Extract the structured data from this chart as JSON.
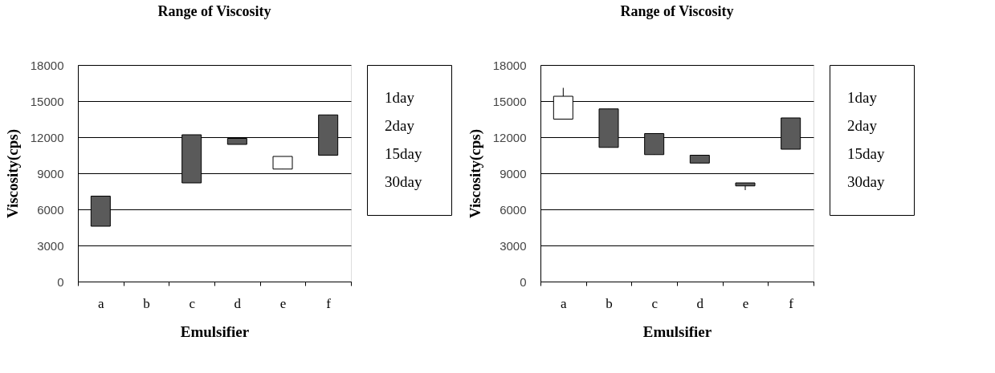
{
  "chart_data": [
    {
      "type": "candlestick",
      "title": "Range of Viscosity",
      "xlabel": "Emulsifier",
      "ylabel": "Viscosity(cps)",
      "categories": [
        "a",
        "b",
        "c",
        "d",
        "e",
        "f"
      ],
      "ohlc": [
        [
          7100,
          7100,
          4600,
          4600
        ],
        null,
        [
          12200,
          12200,
          8200,
          8200
        ],
        [
          11900,
          11900,
          11400,
          11400
        ],
        [
          9350,
          10400,
          9350,
          10400
        ],
        [
          13850,
          13850,
          10500,
          10500
        ]
      ],
      "ylim": [
        0,
        18000
      ],
      "yticks": [
        0,
        3000,
        6000,
        9000,
        12000,
        15000,
        18000
      ],
      "grid": "y",
      "annotations": [
        "1day",
        "2day",
        "15day",
        "30day"
      ]
    },
    {
      "type": "candlestick",
      "title": "Range of Viscosity",
      "xlabel": "Emulsifier",
      "ylabel": "Viscosity(cps)",
      "categories": [
        "a",
        "b",
        "c",
        "d",
        "e",
        "f"
      ],
      "ohlc": [
        [
          13500,
          16100,
          13500,
          15400
        ],
        [
          14350,
          14350,
          11150,
          11150
        ],
        [
          12300,
          12300,
          10550,
          10550
        ],
        [
          10500,
          10500,
          9850,
          9850
        ],
        [
          8200,
          8200,
          7600,
          7950
        ],
        [
          13600,
          13600,
          11000,
          11000
        ]
      ],
      "ylim": [
        0,
        18000
      ],
      "yticks": [
        0,
        3000,
        6000,
        9000,
        12000,
        15000,
        18000
      ],
      "grid": "y",
      "annotations": [
        "1day",
        "2day",
        "15day",
        "30day"
      ]
    }
  ]
}
